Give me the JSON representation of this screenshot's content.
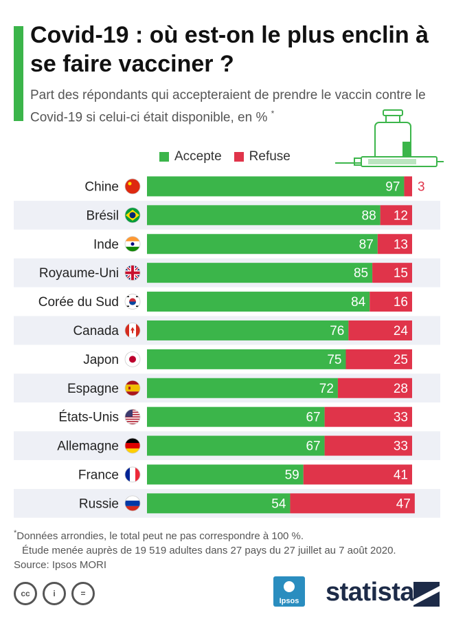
{
  "title": "Covid-19 : où est-on le plus enclin à se faire vacciner ?",
  "subtitle": "Part des répondants qui accepteraient de prendre le vaccin contre le Covid-19 si celui-ci était disponible, en %",
  "subtitle_mark": "*",
  "colors": {
    "accent": "#3bb54a",
    "accepte": "#3bb54a",
    "refuse": "#e0344a",
    "band": "#eef0f6"
  },
  "icons": {
    "vaccine": "syringe-vial-icon",
    "flags": "country-flag-icons"
  },
  "chart_data": {
    "type": "bar",
    "orientation": "horizontal",
    "stacked": true,
    "xlim": [
      0,
      100
    ],
    "legend_position": "top",
    "categories": [
      "Chine",
      "Brésil",
      "Inde",
      "Royaume-Uni",
      "Corée du Sud",
      "Canada",
      "Japon",
      "Espagne",
      "États-Unis",
      "Allemagne",
      "France",
      "Russie"
    ],
    "series": [
      {
        "name": "Accepte",
        "color": "#3bb54a",
        "values": [
          97,
          88,
          87,
          85,
          84,
          76,
          75,
          72,
          67,
          67,
          59,
          54
        ]
      },
      {
        "name": "Refuse",
        "color": "#e0344a",
        "values": [
          3,
          12,
          13,
          15,
          16,
          24,
          25,
          28,
          33,
          33,
          41,
          47
        ]
      }
    ]
  },
  "footnote": {
    "mark": "*",
    "line1": "Données arrondies, le total peut ne pas correspondre à 100 %.",
    "line2": "Étude menée auprès de 19 519 adultes dans 27 pays du 27 juillet au 7 août 2020.",
    "source": "Source: Ipsos MORI"
  },
  "logos": {
    "ipsos": "Ipsos",
    "statista": "statista"
  },
  "license_icons": [
    "cc",
    "i",
    "="
  ]
}
